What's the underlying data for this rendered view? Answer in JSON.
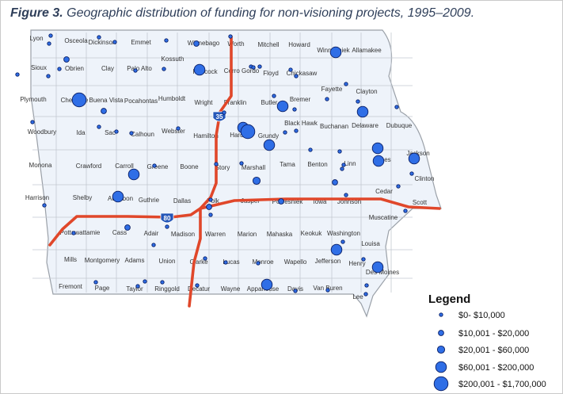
{
  "figure": {
    "label": "Figure 3.",
    "title": "Geographic distribution of funding for non-visioning projects, 1995–2009."
  },
  "colors": {
    "state_fill": "#eef3fa",
    "state_border": "#9aa0a8",
    "county_line": "#c3c9d1",
    "highway": "#e0472a",
    "marker_fill": "#2f6ee6",
    "marker_stroke": "#0a1f66",
    "shield_fill": "#2456b8"
  },
  "highways": [
    {
      "id": "35",
      "label": "35"
    },
    {
      "id": "80",
      "label": "80"
    }
  ],
  "counties": [
    "Lyon",
    "Osceola",
    "Dickinson",
    "Emmet",
    "Winnebago",
    "Worth",
    "Mitchell",
    "Howard",
    "Winneshiek",
    "Allamakee",
    "Sioux",
    "Obrien",
    "Clay",
    "Palo Alto",
    "Kossuth",
    "Hancock",
    "Cerro Gordo",
    "Floyd",
    "Chickasaw",
    "Fayette",
    "Clayton",
    "Plymouth",
    "Cherokee",
    "Buena Vista",
    "Pocahontas",
    "Humboldt",
    "Wright",
    "Franklin",
    "Butler",
    "Bremer",
    "Black Hawk",
    "Buchanan",
    "Delaware",
    "Dubuque",
    "Woodbury",
    "Ida",
    "Sac",
    "Calhoun",
    "Webster",
    "Hamilton",
    "Hardin",
    "Grundy",
    "Monona",
    "Crawford",
    "Carroll",
    "Greene",
    "Boone",
    "Story",
    "Marshall",
    "Tama",
    "Benton",
    "Linn",
    "Jones",
    "Jackson",
    "Clinton",
    "Harrison",
    "Shelby",
    "Audubon",
    "Guthrie",
    "Dallas",
    "Polk",
    "Jasper",
    "Poweshiek",
    "Iowa",
    "Johnson",
    "Cedar",
    "Scott",
    "Muscatine",
    "Pottawattamie",
    "Cass",
    "Adair",
    "Madison",
    "Warren",
    "Marion",
    "Mahaska",
    "Keokuk",
    "Washington",
    "Louisa",
    "Mills",
    "Montgomery",
    "Adams",
    "Union",
    "Clarke",
    "Lucas",
    "Monroe",
    "Wapello",
    "Jefferson",
    "Henry",
    "Des Moines",
    "Fremont",
    "Page",
    "Taylor",
    "Ringgold",
    "Decatur",
    "Wayne",
    "Appanoose",
    "Davis",
    "Van Buren",
    "Lee"
  ],
  "funding_markers": [
    {
      "county": "Lyon",
      "tier": 1
    },
    {
      "county": "Osceola",
      "tier": 1
    },
    {
      "county": "Dickinson",
      "tier": 1
    },
    {
      "county": "Dickinson",
      "tier": 1
    },
    {
      "county": "Kossuth",
      "tier": 1
    },
    {
      "county": "Winnebago",
      "tier": 2
    },
    {
      "county": "Worth",
      "tier": 1
    },
    {
      "county": "Winneshiek",
      "tier": 4
    },
    {
      "county": "Sioux",
      "tier": 1
    },
    {
      "county": "Sioux",
      "tier": 1
    },
    {
      "county": "Obrien",
      "tier": 1
    },
    {
      "county": "Obrien",
      "tier": 2
    },
    {
      "county": "Palo Alto",
      "tier": 1
    },
    {
      "county": "Kossuth",
      "tier": 1
    },
    {
      "county": "Hancock",
      "tier": 4
    },
    {
      "county": "Cerro Gordo",
      "tier": 1
    },
    {
      "county": "Cerro Gordo",
      "tier": 1
    },
    {
      "county": "Floyd",
      "tier": 1
    },
    {
      "county": "Chickasaw",
      "tier": 1
    },
    {
      "county": "Chickasaw",
      "tier": 1
    },
    {
      "county": "Clayton",
      "tier": 1
    },
    {
      "county": "Clayton",
      "tier": 1
    },
    {
      "county": "Cherokee",
      "tier": 5
    },
    {
      "county": "Buena Vista",
      "tier": 2
    },
    {
      "county": "Butler",
      "tier": 4
    },
    {
      "county": "Bremer",
      "tier": 1
    },
    {
      "county": "Bremer",
      "tier": 1
    },
    {
      "county": "Franklin",
      "tier": 1
    },
    {
      "county": "Fayette",
      "tier": 1
    },
    {
      "county": "Delaware",
      "tier": 4
    },
    {
      "county": "Dubuque",
      "tier": 1
    },
    {
      "county": "Woodbury",
      "tier": 1
    },
    {
      "county": "Ida",
      "tier": 1
    },
    {
      "county": "Sac",
      "tier": 1
    },
    {
      "county": "Calhoun",
      "tier": 1
    },
    {
      "county": "Webster",
      "tier": 1
    },
    {
      "county": "Hardin",
      "tier": 4
    },
    {
      "county": "Hardin",
      "tier": 5
    },
    {
      "county": "Grundy",
      "tier": 4
    },
    {
      "county": "Black Hawk",
      "tier": 1
    },
    {
      "county": "Black Hawk",
      "tier": 1
    },
    {
      "county": "Carroll",
      "tier": 4
    },
    {
      "county": "Greene",
      "tier": 1
    },
    {
      "county": "Story",
      "tier": 1
    },
    {
      "county": "Marshall",
      "tier": 1
    },
    {
      "county": "Benton",
      "tier": 1
    },
    {
      "county": "Linn",
      "tier": 1
    },
    {
      "county": "Linn",
      "tier": 1
    },
    {
      "county": "Linn",
      "tier": 1
    },
    {
      "county": "Jones",
      "tier": 4
    },
    {
      "county": "Jones",
      "tier": 4
    },
    {
      "county": "Jackson",
      "tier": 4
    },
    {
      "county": "Clinton",
      "tier": 1
    },
    {
      "county": "Harrison",
      "tier": 1
    },
    {
      "county": "Audubon",
      "tier": 4
    },
    {
      "county": "Polk",
      "tier": 2
    },
    {
      "county": "Polk",
      "tier": 1
    },
    {
      "county": "Jasper",
      "tier": 3
    },
    {
      "county": "Poweshiek",
      "tier": 2
    },
    {
      "county": "Johnson",
      "tier": 2
    },
    {
      "county": "Johnson",
      "tier": 1
    },
    {
      "county": "Scott",
      "tier": 1
    },
    {
      "county": "Scott",
      "tier": 1
    },
    {
      "county": "Pottawattamie",
      "tier": 1
    },
    {
      "county": "Cass",
      "tier": 2
    },
    {
      "county": "Warren",
      "tier": 1
    },
    {
      "county": "Madison",
      "tier": 1
    },
    {
      "county": "Washington",
      "tier": 1
    },
    {
      "county": "Louisa",
      "tier": 1
    },
    {
      "county": "Union",
      "tier": 1
    },
    {
      "county": "Clarke",
      "tier": 1
    },
    {
      "county": "Lucas",
      "tier": 1
    },
    {
      "county": "Monroe",
      "tier": 1
    },
    {
      "county": "Henry",
      "tier": 4
    },
    {
      "county": "Des Moines",
      "tier": 4
    },
    {
      "county": "Page",
      "tier": 1
    },
    {
      "county": "Taylor",
      "tier": 1
    },
    {
      "county": "Taylor",
      "tier": 1
    },
    {
      "county": "Ringgold",
      "tier": 1
    },
    {
      "county": "Decatur",
      "tier": 1
    },
    {
      "county": "Appanoose",
      "tier": 4
    },
    {
      "county": "Lee",
      "tier": 1
    },
    {
      "county": "Lee",
      "tier": 1
    },
    {
      "county": "Van Buren",
      "tier": 1
    },
    {
      "county": "Davis",
      "tier": 1
    }
  ],
  "legend": {
    "title": "Legend",
    "items": [
      {
        "tier": 1,
        "label": "$0- $10,000"
      },
      {
        "tier": 2,
        "label": "$10,001 - $20,000"
      },
      {
        "tier": 3,
        "label": "$20,001 - $60,000"
      },
      {
        "tier": 4,
        "label": "$60,001 - $200,000"
      },
      {
        "tier": 5,
        "label": "$200,001 - $1,700,000"
      }
    ]
  }
}
